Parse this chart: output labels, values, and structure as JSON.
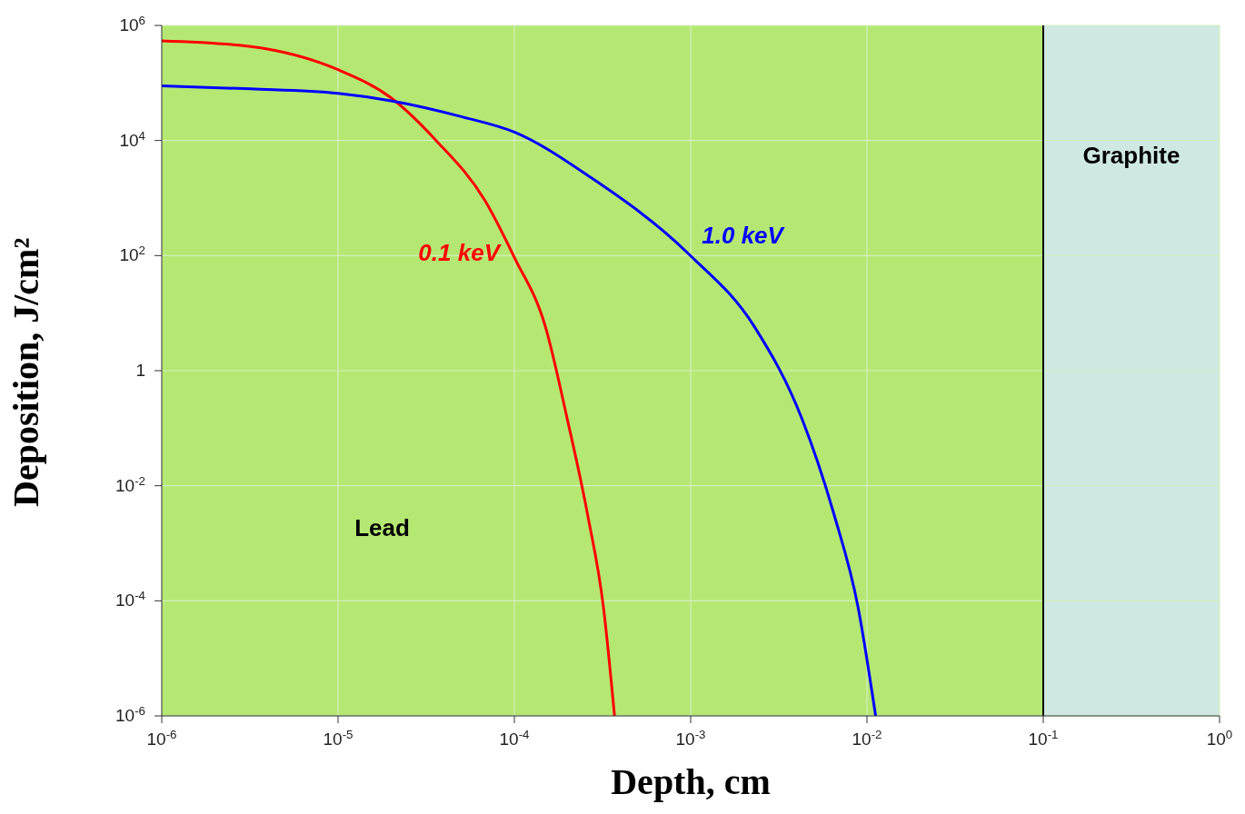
{
  "chart_data": {
    "type": "line",
    "xlabel": "Depth, cm",
    "ylabel": "Deposition, J/cm²",
    "log": "xy",
    "grid": true,
    "xlim": [
      1e-06,
      1
    ],
    "ylim": [
      1e-06,
      1000000.0
    ],
    "xticks": [
      {
        "value": 1e-06,
        "label": "10$^{-6}$"
      },
      {
        "value": 1e-05,
        "label": "10$^{-5}$"
      },
      {
        "value": 0.0001,
        "label": "10$^{-4}$"
      },
      {
        "value": 0.001,
        "label": "10$^{-3}$"
      },
      {
        "value": 0.01,
        "label": "10$^{-2}$"
      },
      {
        "value": 0.1,
        "label": "10$^{-1}$"
      },
      {
        "value": 1,
        "label": "10$^{0}$"
      }
    ],
    "yticks": [
      {
        "value": 1e-06,
        "label": "10$^{-6}$"
      },
      {
        "value": 0.0001,
        "label": "10$^{-4}$"
      },
      {
        "value": 0.01,
        "label": "10$^{-2}$"
      },
      1,
      {
        "value": 100,
        "label": "10$^{2}$"
      },
      {
        "value": 10000.0,
        "label": "10$^{4}$"
      },
      {
        "value": 1000000.0,
        "label": "10$^{6}$"
      }
    ],
    "bands": [
      {
        "axis": "x",
        "from": 1e-06,
        "to": 0.1,
        "label": "Lead",
        "color": "#b5e872"
      },
      {
        "axis": "x",
        "from": 0.1,
        "to": 1,
        "label": "Graphite",
        "color": "#cfe8e2"
      }
    ],
    "ref_lines": [
      {
        "axis": "x",
        "value": 0.1,
        "color": "#000000"
      }
    ],
    "series": [
      {
        "name": "0.1 keV",
        "color": "#ff0000",
        "x": [
          1e-06,
          3.2e-06,
          1e-05,
          2e-05,
          3.6e-05,
          6.8e-05,
          0.0001,
          0.00015,
          0.0002,
          0.00026,
          0.00032,
          0.00037
        ],
        "values": [
          540000.0,
          430000.0,
          170000.0,
          55000.0,
          10000.0,
          910,
          93,
          5.8,
          0.14,
          0.0032,
          7.8e-05,
          1e-06
        ]
      },
      {
        "name": "1.0 keV",
        "color": "#0000ff",
        "x": [
          1e-06,
          3.2e-06,
          1e-05,
          2e-05,
          5e-05,
          0.0001,
          0.00027,
          0.00098,
          0.0023,
          0.0043,
          0.0065,
          0.0089,
          0.0112
        ],
        "values": [
          89000.0,
          79000.0,
          66000.0,
          49000.0,
          26000.0,
          14000.0,
          2300,
          105,
          5.8,
          0.14,
          0.0032,
          7.8e-05,
          1e-06
        ]
      }
    ]
  }
}
